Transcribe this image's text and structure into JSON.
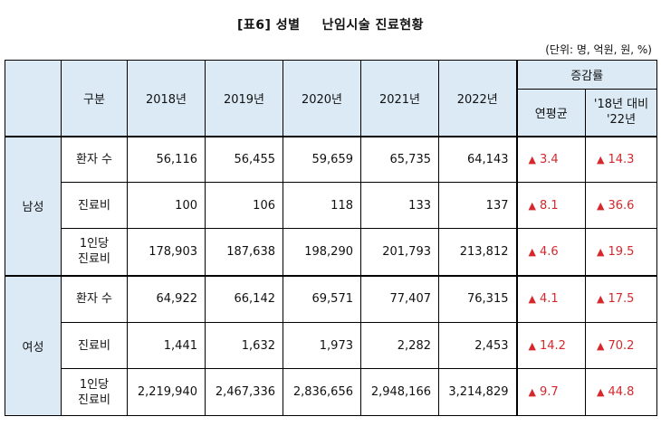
{
  "title": {
    "prefix": "[표6]",
    "main": "성별",
    "sub": "난임시술 진료현황"
  },
  "unit": "(단위: 명, 억원, 원, %)",
  "header": {
    "category": "구분",
    "years": [
      "2018년",
      "2019년",
      "2020년",
      "2021년",
      "2022년"
    ],
    "change_group": "증감률",
    "change_cols": [
      "연평균",
      "'18년 대비\n'22년"
    ]
  },
  "groups": [
    {
      "label": "남성",
      "rows": [
        {
          "label": "환자 수",
          "values": [
            "56,116",
            "56,455",
            "59,659",
            "65,735",
            "64,143"
          ],
          "avg": "3.4",
          "vs": "14.3"
        },
        {
          "label": "진료비",
          "values": [
            "100",
            "106",
            "118",
            "133",
            "137"
          ],
          "avg": "8.1",
          "vs": "36.6"
        },
        {
          "label": "1인당\n진료비",
          "values": [
            "178,903",
            "187,638",
            "198,290",
            "201,793",
            "213,812"
          ],
          "avg": "4.6",
          "vs": "19.5"
        }
      ]
    },
    {
      "label": "여성",
      "rows": [
        {
          "label": "환자 수",
          "values": [
            "64,922",
            "66,142",
            "69,571",
            "77,407",
            "76,315"
          ],
          "avg": "4.1",
          "vs": "17.5"
        },
        {
          "label": "진료비",
          "values": [
            "1,441",
            "1,632",
            "1,973",
            "2,282",
            "2,453"
          ],
          "avg": "14.2",
          "vs": "70.2"
        },
        {
          "label": "1인당\n진료비",
          "values": [
            "2,219,940",
            "2,467,336",
            "2,836,656",
            "2,948,166",
            "3,214,829"
          ],
          "avg": "9.7",
          "vs": "44.8"
        }
      ]
    }
  ],
  "up_symbol": "▲",
  "colors": {
    "header_bg": "#dbeaf5",
    "increase": "#d6272c"
  }
}
